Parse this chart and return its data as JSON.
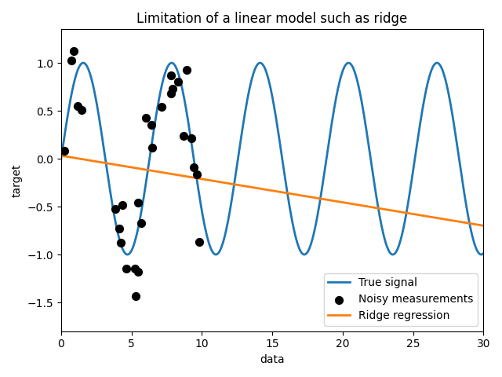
{
  "title": "Limitation of a linear model such as ridge",
  "xlabel": "data",
  "ylabel": "target",
  "true_signal_color": "#1f77b4",
  "ridge_color": "#ff7f0e",
  "scatter_color": "black",
  "scatter_edgecolor": "black",
  "legend_entries": [
    "True signal",
    "Noisy measurements",
    "Ridge regression"
  ],
  "x_range": [
    0,
    30
  ],
  "y_range": [
    -1.8,
    1.35
  ],
  "n_scatter": 30,
  "noise_std": 0.3,
  "ridge_intercept": 0.032,
  "ridge_slope": -0.02435
}
